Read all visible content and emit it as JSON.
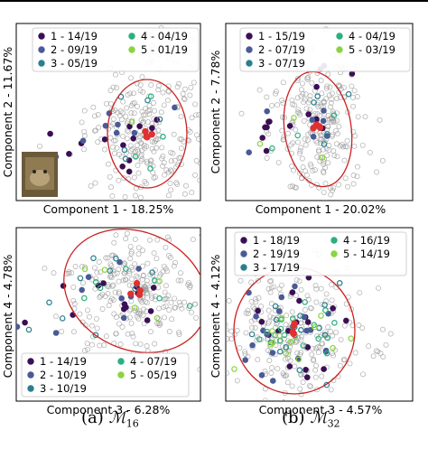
{
  "figure": {
    "captions": [
      {
        "tag": "(a)",
        "symbol": "ℳ",
        "subscript": "16"
      },
      {
        "tag": "(b)",
        "symbol": "ℳ",
        "subscript": "32"
      }
    ],
    "legend_colors": [
      "#3b0f55",
      "#4a5a96",
      "#2a7f8e",
      "#2bb07f",
      "#8ad53f"
    ],
    "ellipse_color": "#cc2222",
    "centroid_color": "#e03030",
    "background_point_color": "#9a9a9a",
    "inset_image": {
      "present": true,
      "icon": "frog-thumbnail-image"
    }
  },
  "chart_data": [
    {
      "type": "scatter",
      "panel": "a-top",
      "xlabel": "Component 1 - 18.25%",
      "ylabel": "Component 2 - 11.67%",
      "legend": [
        "1 - 14/19",
        "2 - 09/19",
        "3 - 05/19",
        "4 - 04/19",
        "5 - 01/19"
      ],
      "legend_position": "top",
      "has_inset_image": true,
      "series_counts": [
        14,
        9,
        5,
        4,
        1
      ]
    },
    {
      "type": "scatter",
      "panel": "b-top",
      "xlabel": "Component 1 - 20.02%",
      "ylabel": "Component 2 - 7.78%",
      "legend": [
        "1 - 15/19",
        "2 - 07/19",
        "3 - 07/19",
        "4 - 04/19",
        "5 - 03/19"
      ],
      "legend_position": "top",
      "has_inset_image": false,
      "series_counts": [
        15,
        7,
        7,
        4,
        3
      ]
    },
    {
      "type": "scatter",
      "panel": "a-bottom",
      "xlabel": "Component 3 - 6.28%",
      "ylabel": "Component 4 - 4.78%",
      "legend": [
        "1 - 14/19",
        "2 - 10/19",
        "3 - 10/19",
        "4 - 07/19",
        "5 - 05/19"
      ],
      "legend_position": "bottom",
      "has_inset_image": false,
      "series_counts": [
        14,
        10,
        10,
        7,
        5
      ]
    },
    {
      "type": "scatter",
      "panel": "b-bottom",
      "xlabel": "Component 3 - 4.57%",
      "ylabel": "Component 4 - 4.12%",
      "legend": [
        "1 - 18/19",
        "2 - 19/19",
        "3 - 17/19",
        "4 - 16/19",
        "5 - 14/19"
      ],
      "legend_position": "top",
      "has_inset_image": false,
      "series_counts": [
        18,
        19,
        17,
        16,
        14
      ]
    }
  ]
}
